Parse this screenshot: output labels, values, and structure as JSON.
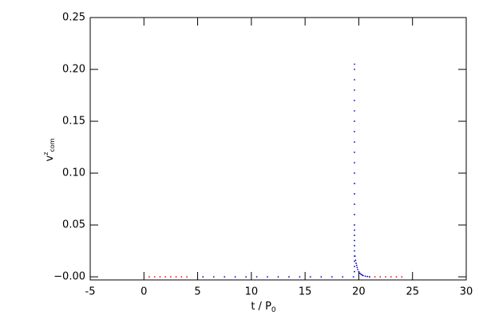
{
  "chart_data": {
    "type": "scatter",
    "xlabel": "t / P",
    "xlabel_sub": "0",
    "ylabel": "v",
    "ylabel_sup": "z",
    "ylabel_sub": "com",
    "xlim": [
      -5,
      30
    ],
    "xticks": [
      -5,
      0,
      5,
      10,
      15,
      20,
      25,
      30
    ],
    "ylim": [
      -0.003,
      0.25
    ],
    "yticks": [
      {
        "value": 0,
        "label": "−0.00"
      },
      {
        "value": 0.05,
        "label": "0.05"
      },
      {
        "value": 0.1,
        "label": "0.10"
      },
      {
        "value": 0.15,
        "label": "0.15"
      },
      {
        "value": 0.2,
        "label": "0.20"
      },
      {
        "value": 0.25,
        "label": "0.25"
      }
    ],
    "series": [
      {
        "color": "#ff0000",
        "x": [
          0.5,
          1,
          1.5,
          2,
          2.5,
          3,
          3.5,
          4,
          21,
          21.5,
          22,
          22.5,
          23,
          23.5,
          24
        ],
        "values": [
          0,
          0,
          0,
          0,
          0,
          0,
          0,
          0,
          0,
          0,
          0,
          0,
          0,
          0,
          0
        ]
      },
      {
        "color": "#0000cc",
        "x": [
          5.5,
          6.5,
          7.5,
          8.5,
          9.5,
          10.5,
          11.5,
          12.5,
          13.5,
          14.5,
          15.5,
          16.5,
          17.5,
          18.5,
          19.5,
          19.6,
          19.6,
          19.6,
          19.6,
          19.6,
          19.6,
          19.6,
          19.6,
          19.6,
          19.6,
          19.6,
          19.6,
          19.6,
          19.6,
          19.6,
          19.6,
          19.6,
          19.6,
          19.6,
          19.6,
          19.6,
          19.6,
          19.6,
          19.6,
          19.6,
          19.6,
          19.65,
          19.7,
          19.75,
          19.8,
          19.85,
          19.9,
          20.0,
          20.1,
          20.2,
          20.3,
          20.4,
          20.6,
          20.8,
          21.0
        ],
        "values": [
          0,
          0,
          0,
          0,
          0,
          0,
          0,
          0,
          0,
          0,
          0,
          0,
          0,
          0,
          0,
          0.01,
          0.02,
          0.03,
          0.04,
          0.05,
          0.06,
          0.07,
          0.08,
          0.09,
          0.1,
          0.11,
          0.12,
          0.13,
          0.14,
          0.15,
          0.16,
          0.17,
          0.18,
          0.19,
          0.2,
          0.205,
          0.035,
          0.025,
          0.015,
          0.005,
          0.045,
          0.02,
          0.016,
          0.013,
          0.011,
          0.009,
          0.007,
          0.005,
          0.0035,
          0.0025,
          0.0018,
          0.0012,
          0.0006,
          0.0003,
          0
        ]
      }
    ]
  }
}
